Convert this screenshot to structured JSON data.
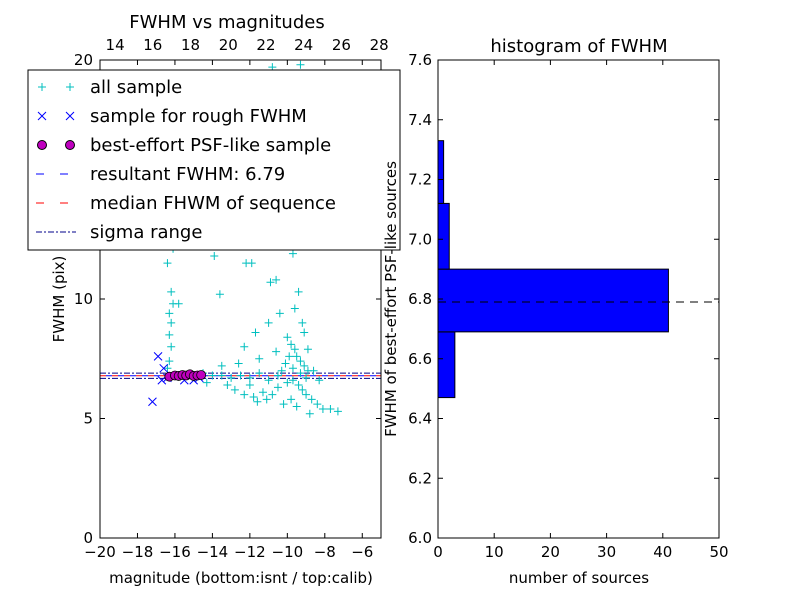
{
  "chart_data": [
    {
      "type": "scatter",
      "title": "FWHM vs magnitudes",
      "xlabel": "magnitude (bottom:isnt / top:calib)",
      "ylabel": "FWHM (pix)",
      "xlim": [
        -20,
        -5
      ],
      "xlim_top": [
        13.2,
        28.1
      ],
      "ylim": [
        0,
        20
      ],
      "xticks": [
        -20,
        -18,
        -16,
        -14,
        -12,
        -10,
        -8,
        -6
      ],
      "xtick_labels": [
        "−20",
        "−18",
        "−16",
        "−14",
        "−12",
        "−10",
        "−8",
        "−6"
      ],
      "xticks_top": [
        14,
        16,
        18,
        20,
        22,
        24,
        26,
        28
      ],
      "yticks": [
        0,
        5,
        10,
        15,
        20
      ],
      "legend": [
        "all sample",
        "sample for rough FWHM",
        "best-effort PSF-like sample",
        "resultant FWHM: 6.79",
        "median FHWM of sequence",
        "sigma range"
      ],
      "legend_placement": "top-left",
      "resultant_fwhm": 6.79,
      "median_fwhm": 6.79,
      "sigma_range": [
        6.68,
        6.9
      ],
      "all_sample": [
        [
          -16.4,
          7.1
        ],
        [
          -16.3,
          7.4
        ],
        [
          -16.2,
          8.0
        ],
        [
          -16.3,
          8.5
        ],
        [
          -16.2,
          9.0
        ],
        [
          -16.3,
          9.4
        ],
        [
          -16.1,
          9.8
        ],
        [
          -16.2,
          10.3
        ],
        [
          -16.4,
          11.5
        ],
        [
          -16.1,
          12.1
        ],
        [
          -16.0,
          13.1
        ],
        [
          -16.2,
          14.2
        ],
        [
          -16.3,
          15.8
        ],
        [
          -16.2,
          16.5
        ],
        [
          -16.1,
          17.2
        ],
        [
          -16.0,
          18.0
        ],
        [
          -15.8,
          9.8
        ],
        [
          -14.5,
          6.9
        ],
        [
          -14.0,
          6.8
        ],
        [
          -13.5,
          6.8
        ],
        [
          -13.0,
          6.7
        ],
        [
          -12.5,
          6.8
        ],
        [
          -12.0,
          6.7
        ],
        [
          -11.5,
          6.9
        ],
        [
          -11.0,
          6.6
        ],
        [
          -10.5,
          6.8
        ],
        [
          -14.3,
          6.5
        ],
        [
          -13.2,
          6.4
        ],
        [
          -12.8,
          6.2
        ],
        [
          -12.3,
          6.0
        ],
        [
          -11.8,
          5.9
        ],
        [
          -11.3,
          6.1
        ],
        [
          -13.5,
          7.2
        ],
        [
          -13.9,
          11.8
        ],
        [
          -13.6,
          10.2
        ],
        [
          -12.2,
          11.5
        ],
        [
          -11.9,
          11.5
        ],
        [
          -11.4,
          12.5
        ],
        [
          -11.0,
          9.0
        ],
        [
          -10.6,
          10.8
        ],
        [
          -10.2,
          12.2
        ],
        [
          -9.9,
          12.3
        ],
        [
          -9.7,
          11.9
        ],
        [
          -10.5,
          15.3
        ],
        [
          -10.2,
          16.2
        ],
        [
          -9.9,
          17.1
        ],
        [
          -10.0,
          18.2
        ],
        [
          -9.6,
          19.2
        ],
        [
          -9.3,
          19.8
        ],
        [
          -10.8,
          19.7
        ],
        [
          -11.2,
          13.0
        ],
        [
          -12.9,
          14.2
        ],
        [
          -10.0,
          8.4
        ],
        [
          -9.8,
          8.1
        ],
        [
          -9.6,
          7.9
        ],
        [
          -9.5,
          7.6
        ],
        [
          -9.3,
          7.4
        ],
        [
          -9.1,
          7.2
        ],
        [
          -8.9,
          7.0
        ],
        [
          -9.9,
          7.6
        ],
        [
          -10.1,
          7.3
        ],
        [
          -10.3,
          7.0
        ],
        [
          -9.7,
          6.6
        ],
        [
          -9.4,
          6.4
        ],
        [
          -9.2,
          6.2
        ],
        [
          -9.0,
          6.0
        ],
        [
          -8.7,
          5.8
        ],
        [
          -8.4,
          5.6
        ],
        [
          -8.1,
          5.4
        ],
        [
          -7.7,
          5.4
        ],
        [
          -7.3,
          5.3
        ],
        [
          -10.5,
          6.3
        ],
        [
          -10.8,
          6.0
        ],
        [
          -11.1,
          5.8
        ],
        [
          -9.6,
          9.6
        ],
        [
          -9.4,
          10.3
        ],
        [
          -9.2,
          9.0
        ],
        [
          -10.4,
          9.4
        ],
        [
          -10.9,
          10.7
        ],
        [
          -11.7,
          8.6
        ],
        [
          -12.3,
          8.0
        ],
        [
          -12.6,
          7.3
        ],
        [
          -9.1,
          8.6
        ],
        [
          -8.9,
          7.9
        ],
        [
          -8.6,
          7.0
        ],
        [
          -8.3,
          6.6
        ],
        [
          -9.8,
          5.8
        ],
        [
          -10.2,
          5.6
        ],
        [
          -9.5,
          5.5
        ],
        [
          -11.5,
          7.5
        ],
        [
          -10.6,
          7.8
        ],
        [
          -9.3,
          6.9
        ],
        [
          -9.0,
          6.7
        ],
        [
          -10.0,
          6.5
        ],
        [
          -9.7,
          7.1
        ],
        [
          -12.0,
          6.4
        ],
        [
          -11.6,
          5.7
        ],
        [
          -8.8,
          5.2
        ]
      ],
      "rough_sample": [
        [
          -17.2,
          5.7
        ],
        [
          -16.9,
          7.6
        ],
        [
          -16.6,
          7.1
        ],
        [
          -16.7,
          6.6
        ],
        [
          -16.4,
          6.7
        ],
        [
          -15.5,
          6.6
        ],
        [
          -15.0,
          6.6
        ],
        [
          -14.7,
          6.7
        ]
      ],
      "best_effort_sample": [
        [
          -16.3,
          6.75
        ],
        [
          -16.0,
          6.8
        ],
        [
          -15.8,
          6.78
        ],
        [
          -15.6,
          6.82
        ],
        [
          -15.4,
          6.8
        ],
        [
          -15.2,
          6.85
        ],
        [
          -15.0,
          6.78
        ],
        [
          -14.8,
          6.8
        ],
        [
          -14.6,
          6.82
        ]
      ]
    },
    {
      "type": "bar",
      "orientation": "horizontal",
      "title": "histogram of FWHM",
      "xlabel": "number of sources",
      "ylabel": "FWHM of best-effort PSF-like sources",
      "xlim": [
        0,
        50
      ],
      "ylim": [
        6.0,
        7.6
      ],
      "xticks": [
        0,
        10,
        20,
        30,
        40,
        50
      ],
      "yticks": [
        "6.0",
        "6.2",
        "6.4",
        "6.6",
        "6.8",
        "7.0",
        "7.2",
        "7.4",
        "7.6"
      ],
      "bins": [
        [
          6.47,
          6.69
        ],
        [
          6.69,
          6.9
        ],
        [
          6.9,
          7.12
        ],
        [
          7.12,
          7.33
        ]
      ],
      "values": [
        3,
        41,
        2,
        1
      ],
      "reference_line": 6.79,
      "color": "#0000ff"
    }
  ]
}
